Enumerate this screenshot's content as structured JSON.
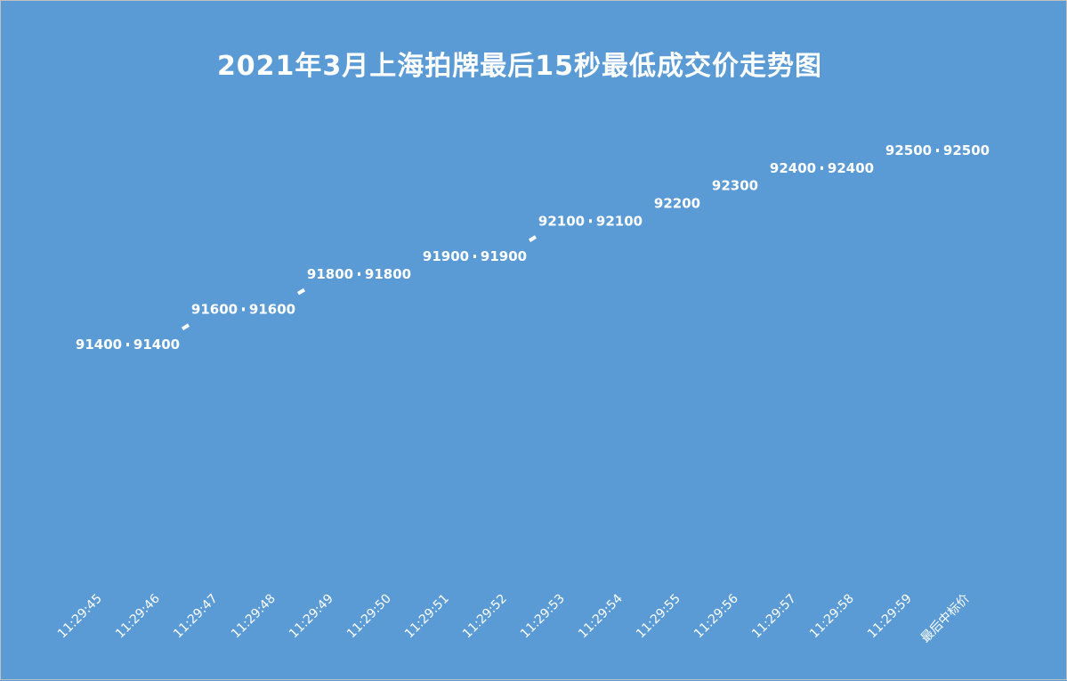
{
  "chart_data": {
    "type": "line",
    "title": "2021年3月上海拍牌最后15秒最低成交价走势图",
    "categories": [
      "11:29:45",
      "11:29:46",
      "11:29:47",
      "11:29:48",
      "11:29:49",
      "11:29:50",
      "11:29:51",
      "11:29:52",
      "11:29:53",
      "11:29:54",
      "11:29:55",
      "11:29:56",
      "11:29:57",
      "11:29:58",
      "11:29:59",
      "最后中标价"
    ],
    "values": [
      91400,
      91400,
      91600,
      91600,
      91800,
      91800,
      91900,
      91900,
      92100,
      92100,
      92200,
      92300,
      92400,
      92400,
      92500,
      92500
    ],
    "value_labels": [
      "91400",
      "91400",
      "91600",
      "91600",
      "91800",
      "91800",
      "91900",
      "91900",
      "92100",
      "92100",
      "92200",
      "92300",
      "92400",
      "92400",
      "92500",
      "92500"
    ],
    "ylim": [
      90200,
      92500
    ],
    "grid": false,
    "drop_lines": true,
    "colors": {
      "background": "#5b9bd5",
      "line": "#ffffff",
      "text": "#ffffff"
    }
  }
}
